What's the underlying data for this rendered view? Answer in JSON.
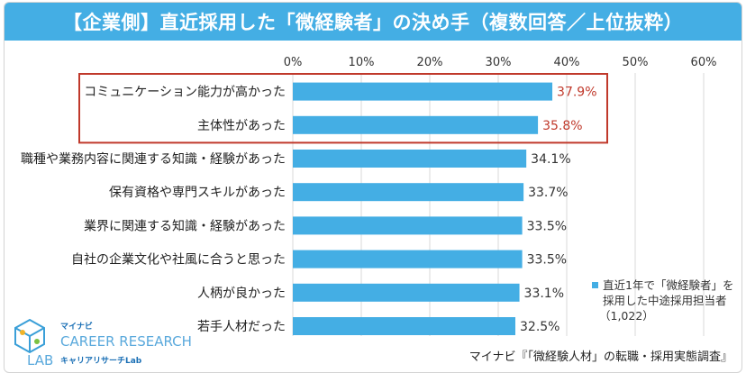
{
  "chart_data": {
    "type": "bar",
    "orientation": "horizontal",
    "title": "【企業側】直近採用した「微経験者」の決め手（複数回答／上位抜粋）",
    "categories": [
      "コミュニケーション能力が高かった",
      "主体性があった",
      "職種や業務内容に関連する知識・経験があった",
      "保有資格や専門スキルがあった",
      "業界に関連する知識・経験があった",
      "自社の企業文化や社風に合うと思った",
      "人柄が良かった",
      "若手人材だった"
    ],
    "values": [
      37.9,
      35.8,
      34.1,
      33.7,
      33.5,
      33.5,
      33.1,
      32.5
    ],
    "value_labels": [
      "37.9%",
      "35.8%",
      "34.1%",
      "33.7%",
      "33.5%",
      "33.5%",
      "33.1%",
      "32.5%"
    ],
    "highlighted": [
      true,
      true,
      false,
      false,
      false,
      false,
      false,
      false
    ],
    "xlim": [
      0,
      60
    ],
    "ticks": [
      "0%",
      "10%",
      "20%",
      "30%",
      "40%",
      "50%",
      "60%"
    ],
    "grid": true,
    "legend_position": "bottom-right",
    "series": [
      {
        "name": "直近1年で「微経験者」を採用した中途採用担当者（1,022）",
        "color": "#44aee4"
      }
    ],
    "legend_lines": [
      "直近1年で「微経験者」を",
      "採用した中途採用担当者",
      "（1,022）"
    ]
  },
  "colors": {
    "bar": "#44aee4",
    "title_bg": "#44aee4",
    "highlight_box": "#c0392b",
    "highlight_text": "#c0392b",
    "grid": "#d9d9d9"
  },
  "source": "マイナビ『「微経験人材」の転職・採用実態調査』",
  "logo": {
    "brand_small": "マイナビ",
    "line1": "CAREER RESEARCH",
    "line2": "LAB",
    "sub": "キャリアリサーチLab",
    "icon": "cube-logo-icon"
  }
}
